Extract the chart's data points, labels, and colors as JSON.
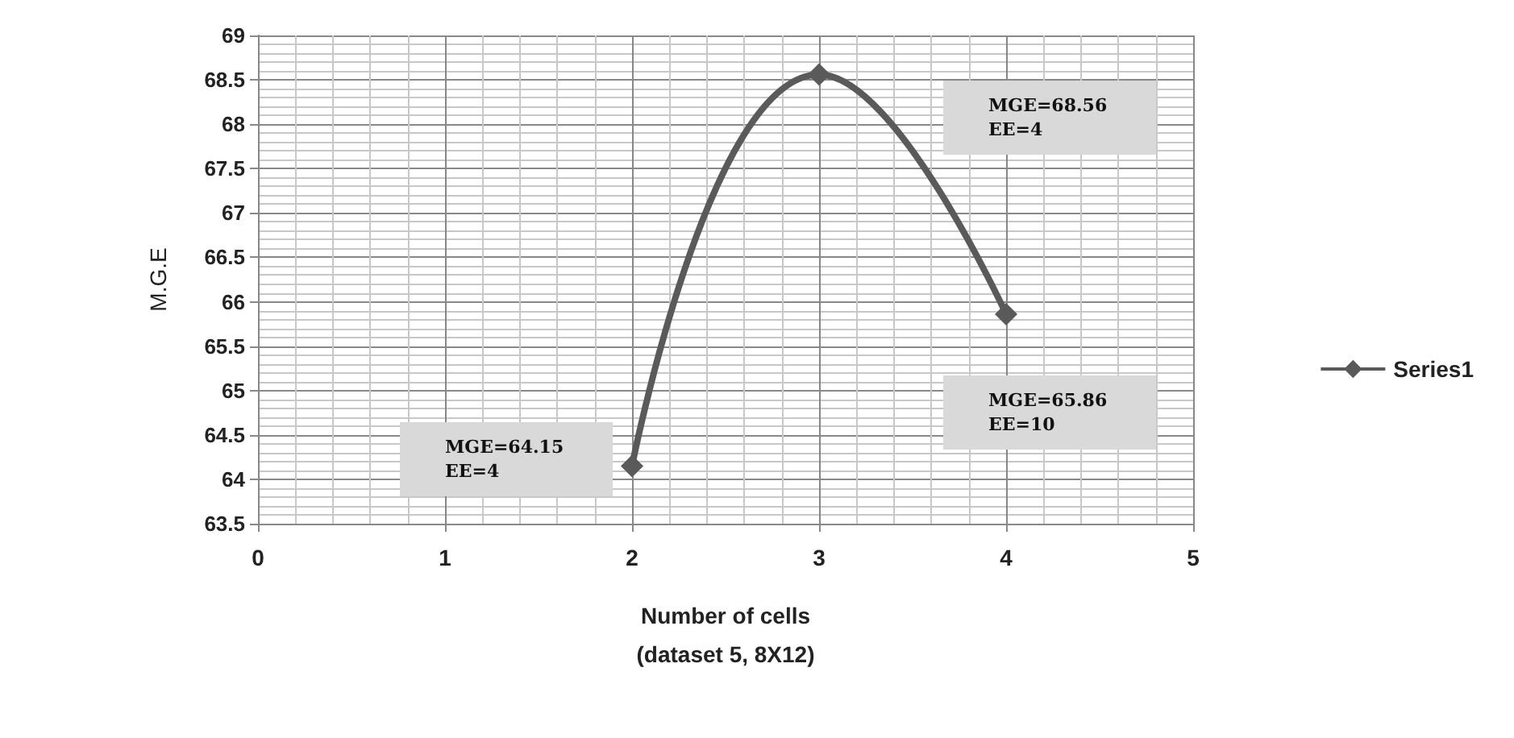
{
  "chart_data": {
    "type": "line",
    "xlabel": "Number of cells\n(dataset 5, 8X12)",
    "ylabel": "M.G.E",
    "x": [
      2,
      3,
      4
    ],
    "series": [
      {
        "name": "Series1",
        "color": "#5a5a5a",
        "values": [
          64.15,
          68.56,
          65.86
        ]
      }
    ],
    "xlim": [
      0,
      5
    ],
    "xticks": [
      0,
      1,
      2,
      3,
      4,
      5
    ],
    "ylim": [
      63.5,
      69
    ],
    "yticks": [
      63.5,
      64,
      64.5,
      65,
      65.5,
      66,
      66.5,
      67,
      67.5,
      68,
      68.5,
      69
    ],
    "grid": true,
    "legend": "right",
    "marker": "diamond",
    "line_style": "solid",
    "annotations": [
      "MGE=64.15\nEE=4",
      "MGE=68.56\nEE=4",
      "MGE=65.86\nEE=10"
    ]
  }
}
